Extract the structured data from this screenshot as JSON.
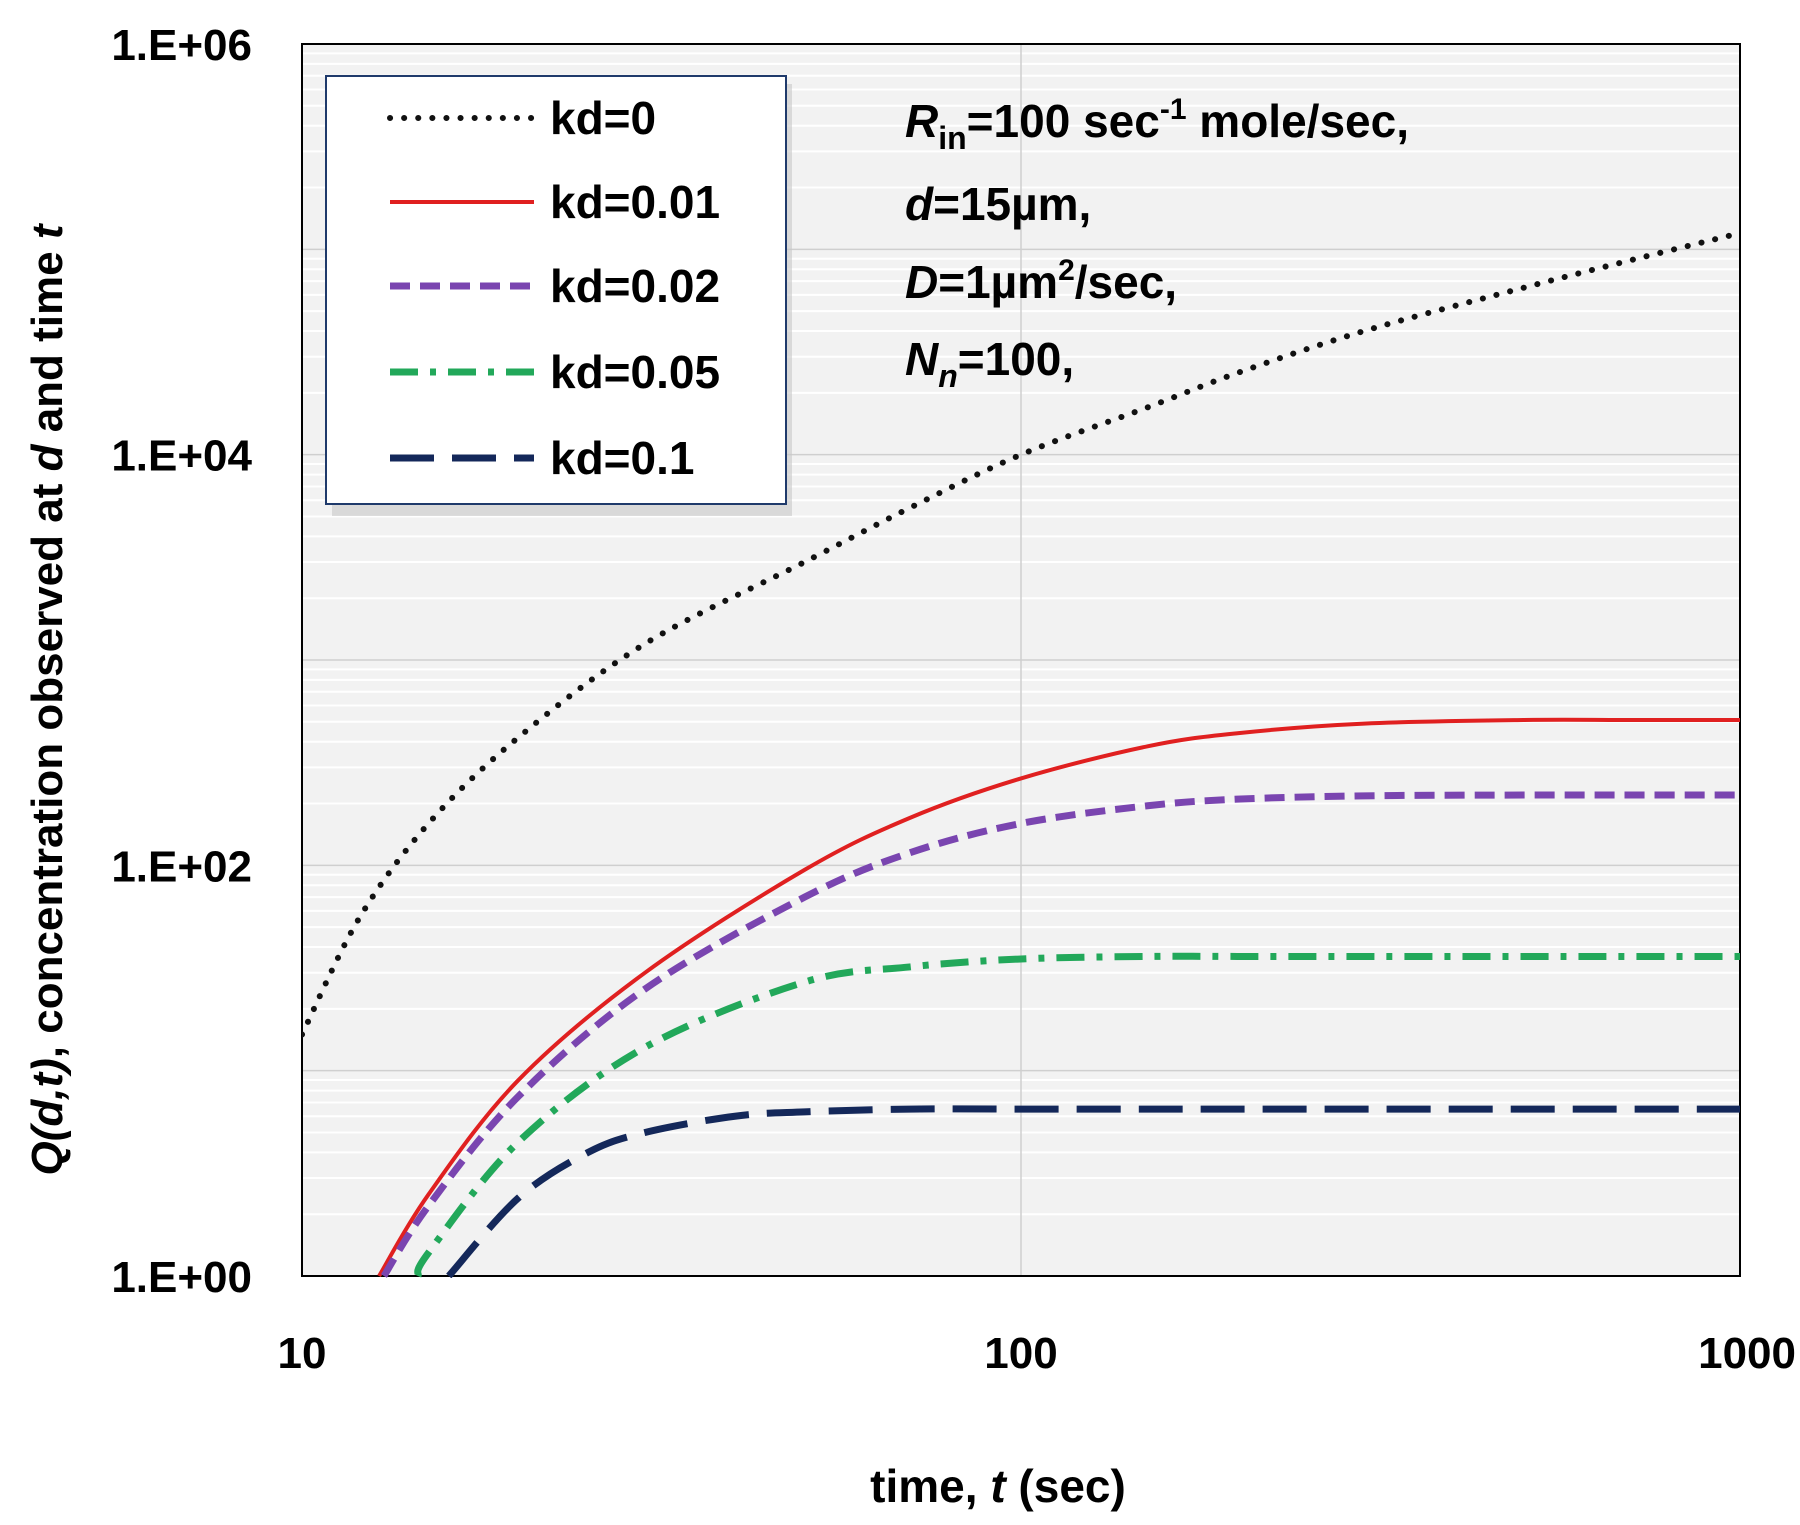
{
  "chart_data": {
    "type": "line",
    "x_scale": "log",
    "y_scale": "log",
    "xlim": [
      10,
      1000
    ],
    "ylim": [
      1,
      1000000
    ],
    "x_ticks": [
      "10",
      "100",
      "1000"
    ],
    "y_ticks": [
      "1.E+00",
      "1.E+02",
      "1.E+04",
      "1.E+06"
    ],
    "xlabel": "time, t (sec)",
    "ylabel": "Q(d,t), concentration observed at d and time t",
    "legend_position": "top-left",
    "grid": true,
    "series": [
      {
        "name": "kd=0",
        "color": "#111111",
        "style": "dotted",
        "x": [
          10,
          12,
          15,
          20,
          30,
          50,
          70,
          100,
          150,
          200,
          300,
          500,
          700,
          1000
        ],
        "y": [
          15,
          55,
          160,
          420,
          1200,
          3000,
          5500,
          10000,
          17000,
          25000,
          40000,
          65000,
          88000,
          120000
        ]
      },
      {
        "name": "kd=0.01",
        "color": "#e02020",
        "style": "solid",
        "x": [
          12.8,
          15,
          20,
          30,
          50,
          70,
          100,
          150,
          200,
          300,
          500,
          700,
          1000
        ],
        "y": [
          1,
          2.5,
          9,
          30,
          95,
          170,
          265,
          380,
          440,
          490,
          510,
          510,
          510
        ]
      },
      {
        "name": "kd=0.02",
        "color": "#7a45b0",
        "style": "dashed",
        "x": [
          13,
          15,
          20,
          30,
          50,
          70,
          100,
          150,
          200,
          300,
          500,
          700,
          1000
        ],
        "y": [
          1,
          2.2,
          7.5,
          25,
          70,
          115,
          160,
          195,
          210,
          218,
          220,
          220,
          220
        ]
      },
      {
        "name": "kd=0.05",
        "color": "#22a85a",
        "style": "dashdot",
        "x": [
          14.5,
          15,
          20,
          30,
          50,
          70,
          100,
          150,
          200,
          300,
          500,
          700,
          1000
        ],
        "y": [
          1,
          1.3,
          4.5,
          13,
          27,
          32,
          35,
          36,
          36,
          36,
          36,
          36,
          36
        ]
      },
      {
        "name": "kd=0.1",
        "color": "#14285a",
        "style": "longdash",
        "x": [
          16,
          20,
          25,
          30,
          40,
          50,
          70,
          100,
          150,
          200,
          300,
          500,
          700,
          1000
        ],
        "y": [
          1,
          2.4,
          4,
          5,
          6,
          6.3,
          6.5,
          6.5,
          6.5,
          6.5,
          6.5,
          6.5,
          6.5,
          6.5
        ]
      }
    ],
    "annotation": {
      "line1": {
        "r": "R",
        "r_sub": "in",
        "text1": "=100 sec",
        "sup": "-1",
        "text2": " mole/sec,"
      },
      "line2": {
        "var": "d",
        "text": "=15µm,"
      },
      "line3": {
        "var": "D",
        "text1": "=1µm",
        "sup": "2",
        "text2": "/sec,"
      },
      "line4": {
        "var": "N",
        "sub": "n",
        "text": "=100,"
      }
    }
  }
}
